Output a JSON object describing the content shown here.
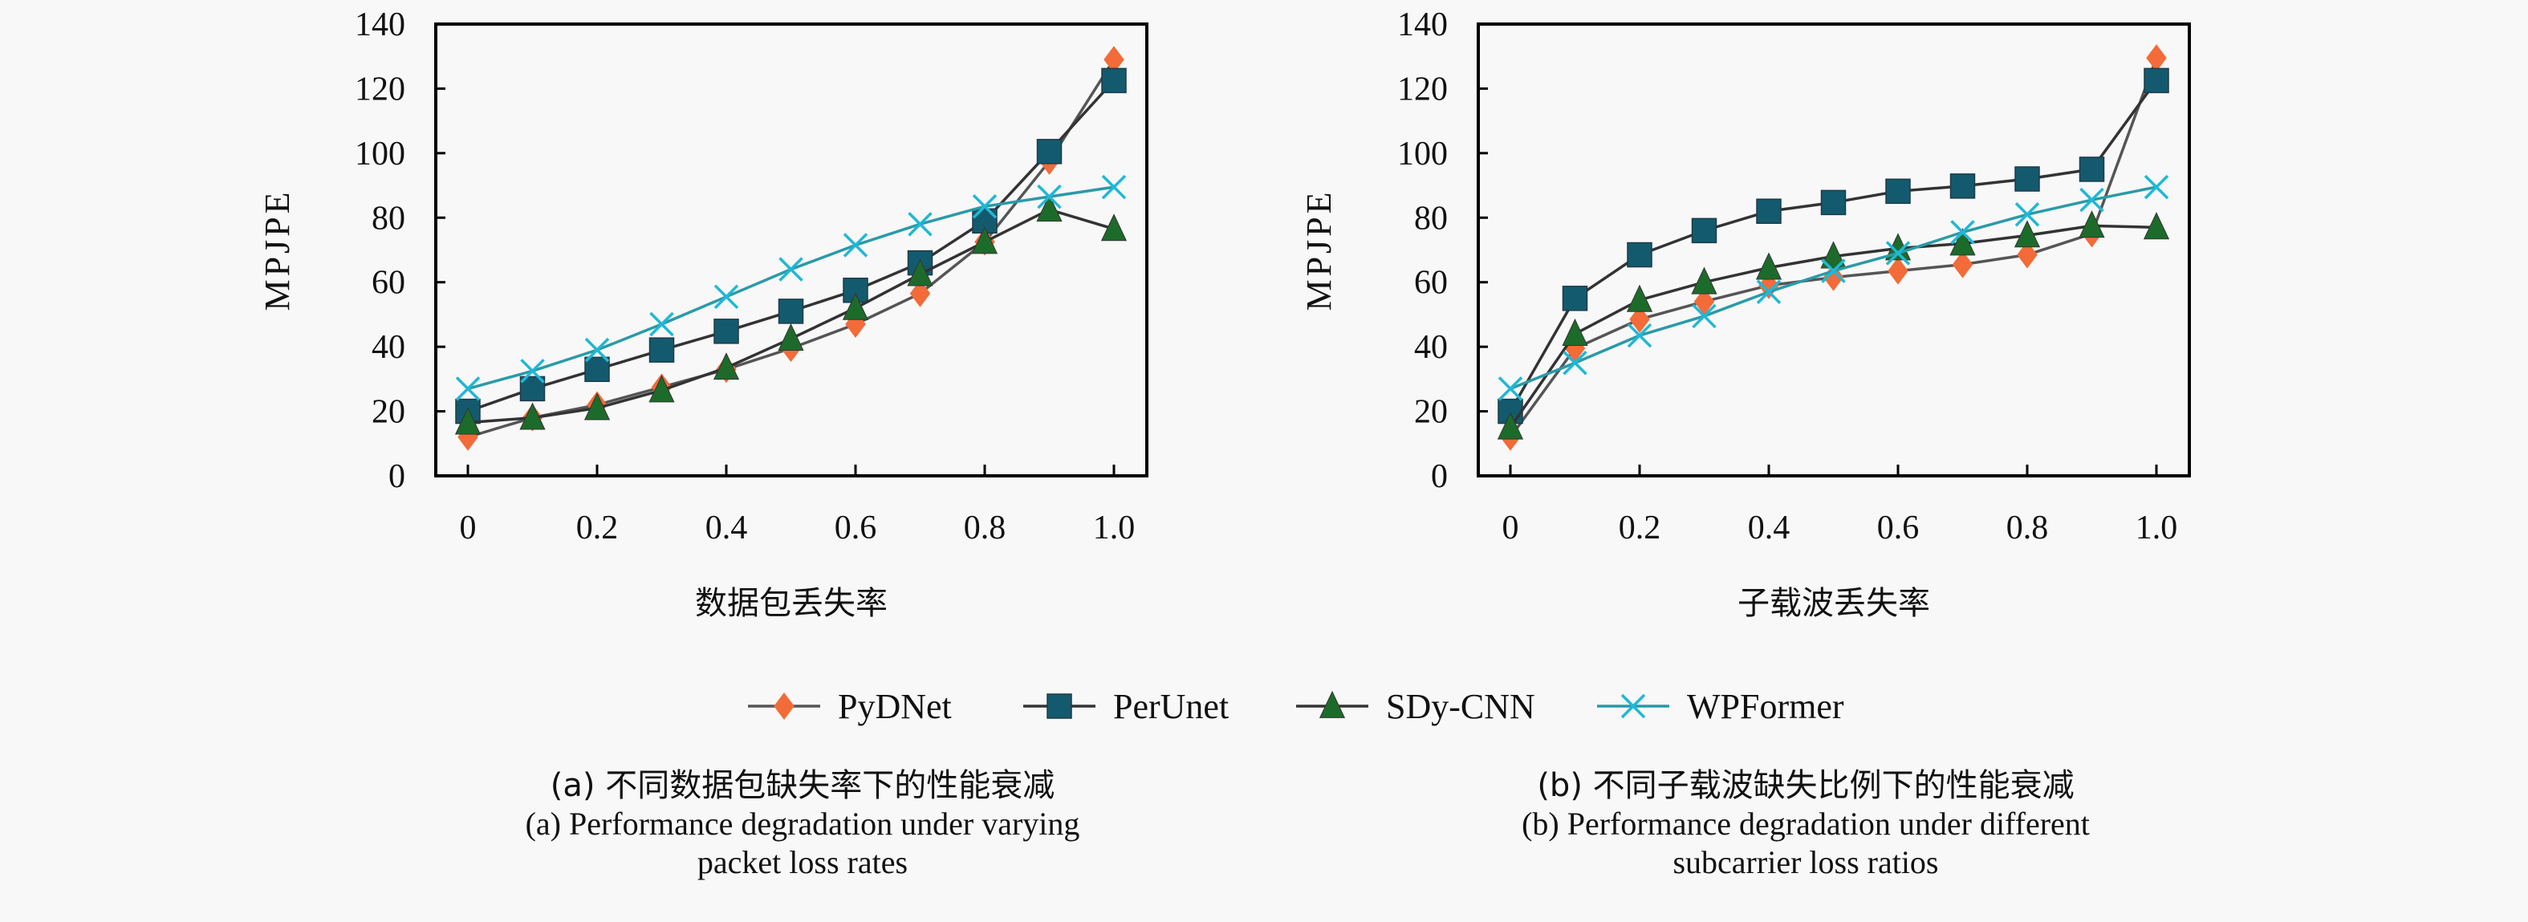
{
  "chart_data": [
    {
      "type": "line",
      "panel": "a",
      "title": "",
      "xlabel": "数据包丢失率",
      "ylabel": "MPJPE",
      "x": [
        0,
        0.1,
        0.2,
        0.3,
        0.4,
        0.5,
        0.6,
        0.7,
        0.8,
        0.9,
        1.0
      ],
      "xticks": [
        0,
        0.2,
        0.4,
        0.6,
        0.8,
        1.0
      ],
      "xtick_labels": [
        "0",
        "0.2",
        "0.4",
        "0.6",
        "0.8",
        "1.0"
      ],
      "xlim": [
        -0.05,
        1.05
      ],
      "yticks": [
        0,
        20,
        40,
        60,
        80,
        100,
        120,
        140
      ],
      "ytick_labels": [
        "0",
        "20",
        "40",
        "60",
        "80",
        "100",
        "120",
        "140"
      ],
      "ylim": [
        0,
        140
      ],
      "grid": false,
      "series": [
        {
          "name": "PyDNet",
          "values": [
            12,
            18,
            22,
            27.5,
            33,
            39.5,
            47,
            56.5,
            72.5,
            97.5,
            129
          ]
        },
        {
          "name": "PerUnet",
          "values": [
            20,
            27,
            33,
            39,
            44.8,
            51,
            57.5,
            66,
            79,
            100.5,
            122.5
          ]
        },
        {
          "name": "SDy-CNN",
          "values": [
            16.5,
            18,
            21,
            26.5,
            33.5,
            42.5,
            52,
            62.5,
            72.5,
            82.5,
            76.5
          ]
        },
        {
          "name": "WPFormer",
          "values": [
            27,
            32.5,
            39,
            47,
            55.5,
            64,
            71.5,
            78,
            83.5,
            86.5,
            89.5
          ]
        }
      ]
    },
    {
      "type": "line",
      "panel": "b",
      "title": "",
      "xlabel": "子载波丢失率",
      "ylabel": "MPJPE",
      "x": [
        0,
        0.1,
        0.2,
        0.3,
        0.4,
        0.5,
        0.6,
        0.7,
        0.8,
        0.9,
        1.0
      ],
      "xticks": [
        0,
        0.2,
        0.4,
        0.6,
        0.8,
        1.0
      ],
      "xtick_labels": [
        "0",
        "0.2",
        "0.4",
        "0.6",
        "0.8",
        "1.0"
      ],
      "xlim": [
        -0.05,
        1.05
      ],
      "yticks": [
        0,
        20,
        40,
        60,
        80,
        100,
        120,
        140
      ],
      "ytick_labels": [
        "0",
        "20",
        "40",
        "60",
        "80",
        "100",
        "120",
        "140"
      ],
      "ylim": [
        0,
        140
      ],
      "grid": false,
      "series": [
        {
          "name": "PyDNet",
          "values": [
            12,
            39.5,
            48.5,
            54,
            59,
            61.5,
            63.5,
            65.5,
            68.5,
            75,
            129.5
          ]
        },
        {
          "name": "PerUnet",
          "values": [
            20,
            55,
            68.5,
            76,
            82,
            84.7,
            88.2,
            89.8,
            92,
            95,
            122.5
          ]
        },
        {
          "name": "SDy-CNN",
          "values": [
            15,
            44,
            54.5,
            60,
            64.5,
            68,
            70.5,
            72,
            74.5,
            77.5,
            77
          ]
        },
        {
          "name": "WPFormer",
          "values": [
            27,
            35,
            43.5,
            49.5,
            57,
            63.5,
            69,
            75.5,
            81,
            85.5,
            89.5
          ]
        }
      ]
    }
  ],
  "legend": {
    "placement": "bottom-center",
    "items": [
      {
        "name": "PyDNet",
        "marker": "diamond",
        "color": "#f26b38",
        "line_color": "#555555"
      },
      {
        "name": "PerUnet",
        "marker": "square",
        "color": "#145a6e",
        "line_color": "#333333"
      },
      {
        "name": "SDy-CNN",
        "marker": "triangle",
        "color": "#1d6b2a",
        "line_color": "#333333"
      },
      {
        "name": "WPFormer",
        "marker": "x",
        "color": "#1fb8d6",
        "line_color": "#2a9aa8"
      }
    ]
  },
  "captions": {
    "a_cn": "(a) 不同数据包缺失率下的性能衰减",
    "a_en_1": "(a) Performance degradation under varying",
    "a_en_2": "packet loss rates",
    "b_cn": "(b) 不同子载波缺失比例下的性能衰减",
    "b_en_1": "(b) Performance degradation under different",
    "b_en_2": "subcarrier loss ratios"
  }
}
